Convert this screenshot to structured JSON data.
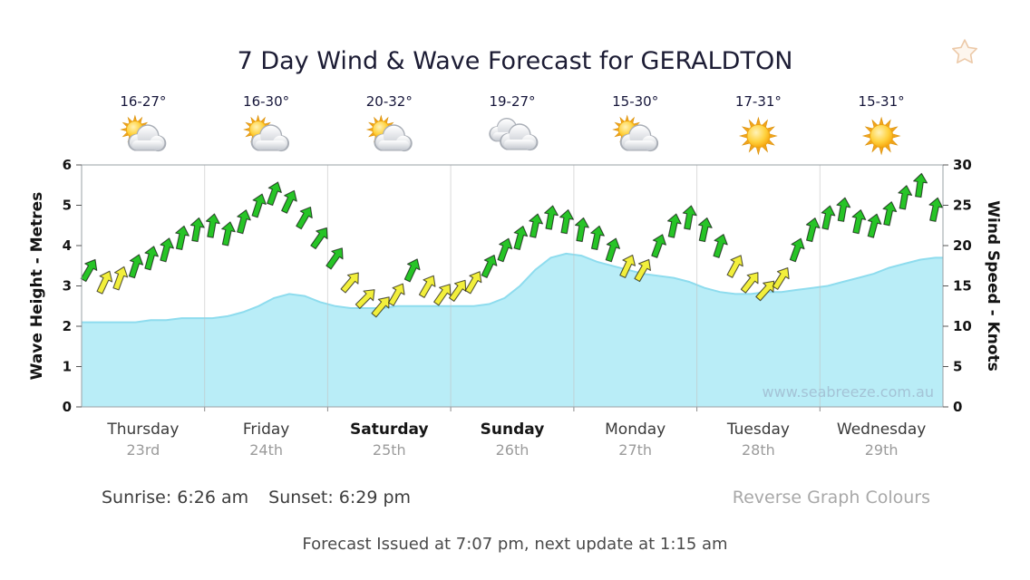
{
  "header": {
    "title": "7 Day Wind & Wave Forecast for GERALDTON",
    "favorite_icon": "star-outline",
    "favorite_color": "#ecc9a8"
  },
  "days": [
    {
      "name": "Thursday",
      "date": "23rd",
      "temp_range": "16-27°",
      "icon": "partly-cloudy",
      "bold": false
    },
    {
      "name": "Friday",
      "date": "24th",
      "temp_range": "16-30°",
      "icon": "partly-cloudy",
      "bold": false
    },
    {
      "name": "Saturday",
      "date": "25th",
      "temp_range": "20-32°",
      "icon": "partly-cloudy",
      "bold": true
    },
    {
      "name": "Sunday",
      "date": "26th",
      "temp_range": "19-27°",
      "icon": "cloudy",
      "bold": true
    },
    {
      "name": "Monday",
      "date": "27th",
      "temp_range": "15-30°",
      "icon": "partly-cloudy",
      "bold": false
    },
    {
      "name": "Tuesday",
      "date": "28th",
      "temp_range": "17-31°",
      "icon": "sunny",
      "bold": false
    },
    {
      "name": "Wednesday",
      "date": "29th",
      "temp_range": "15-31°",
      "icon": "sunny",
      "bold": false
    }
  ],
  "chart_data": {
    "type": "area+wind-arrows",
    "points_per_day": 8,
    "left_axis": {
      "label": "Wave Height - Metres",
      "min": 0,
      "max": 6,
      "tick_step": 1
    },
    "right_axis": {
      "label": "Wind Speed - Knots",
      "min": 0,
      "max": 30,
      "tick_step": 5
    },
    "wave_height_m": [
      2.1,
      2.1,
      2.1,
      2.1,
      2.15,
      2.15,
      2.2,
      2.2,
      2.2,
      2.25,
      2.35,
      2.5,
      2.7,
      2.8,
      2.75,
      2.6,
      2.5,
      2.45,
      2.45,
      2.45,
      2.5,
      2.5,
      2.5,
      2.5,
      2.5,
      2.5,
      2.55,
      2.7,
      3.0,
      3.4,
      3.7,
      3.8,
      3.75,
      3.6,
      3.5,
      3.4,
      3.3,
      3.25,
      3.2,
      3.1,
      2.95,
      2.85,
      2.8,
      2.8,
      2.85,
      2.85,
      2.9,
      2.95,
      3.0,
      3.1,
      3.2,
      3.3,
      3.45,
      3.55,
      3.65,
      3.7
    ],
    "wind_speed_knots": [
      17,
      15.5,
      16,
      17.5,
      18.5,
      19.5,
      21,
      22,
      22.5,
      21.5,
      23,
      25,
      26.5,
      25.5,
      23.5,
      21,
      18.5,
      15.5,
      13.5,
      12.5,
      14,
      17,
      15,
      14,
      14.5,
      15.5,
      17.5,
      19.5,
      21,
      22.5,
      23.5,
      23,
      22,
      21,
      19.5,
      17.5,
      17,
      20,
      22.5,
      23.5,
      22,
      20,
      17.5,
      15.5,
      14.5,
      16,
      19.5,
      22,
      23.5,
      24.5,
      23,
      22.5,
      24,
      26,
      27.5,
      24.5
    ],
    "wind_arrow_colors": [
      "g",
      "y",
      "y",
      "g",
      "g",
      "g",
      "g",
      "g",
      "g",
      "g",
      "g",
      "g",
      "g",
      "g",
      "g",
      "g",
      "g",
      "y",
      "y",
      "y",
      "y",
      "g",
      "y",
      "y",
      "y",
      "y",
      "g",
      "g",
      "g",
      "g",
      "g",
      "g",
      "g",
      "g",
      "g",
      "y",
      "y",
      "g",
      "g",
      "g",
      "g",
      "g",
      "y",
      "y",
      "y",
      "y",
      "g",
      "g",
      "g",
      "g",
      "g",
      "g",
      "g",
      "g",
      "g",
      "g"
    ],
    "wind_dir_deg": [
      30,
      25,
      20,
      18,
      15,
      15,
      12,
      10,
      10,
      12,
      15,
      18,
      20,
      25,
      30,
      35,
      35,
      40,
      45,
      40,
      30,
      25,
      30,
      35,
      35,
      30,
      25,
      20,
      15,
      12,
      10,
      10,
      10,
      12,
      18,
      25,
      30,
      20,
      12,
      10,
      12,
      18,
      28,
      38,
      42,
      32,
      20,
      14,
      12,
      10,
      12,
      15,
      12,
      10,
      8,
      12
    ],
    "watermark": "www.seabreeze.com.au",
    "colors": {
      "wave_fill": "#b9edf7",
      "wave_line": "#8edcee",
      "arrow_green": "#27c427",
      "arrow_yellow": "#f2ef3c",
      "grid": "#c2c2c2",
      "border": "#9aa0a6"
    }
  },
  "footer": {
    "sunrise": "Sunrise: 6:26 am",
    "sunset": "Sunset: 6:29 pm",
    "reverse_link": "Reverse Graph Colours",
    "issued": "Forecast Issued at 7:07 pm, next update at 1:15 am"
  }
}
